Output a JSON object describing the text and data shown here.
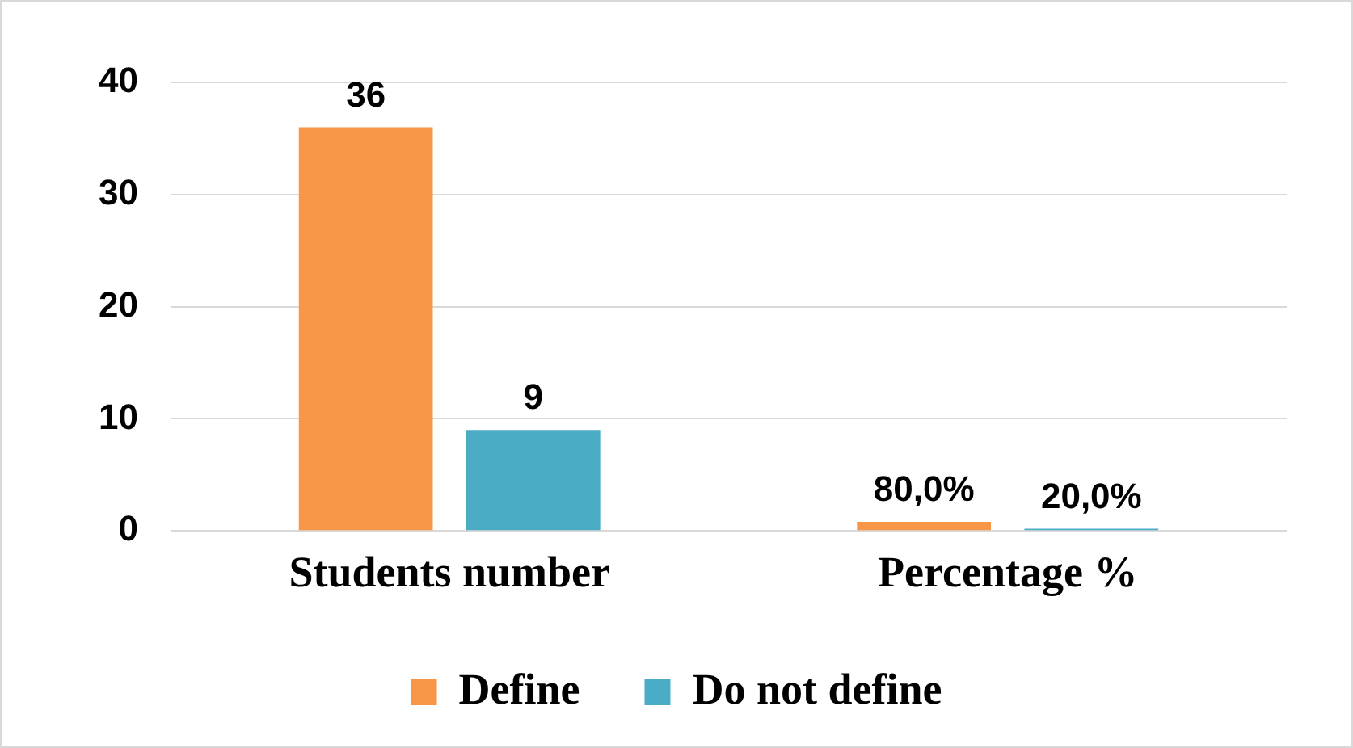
{
  "chart_data": {
    "type": "bar",
    "categories": [
      "Students number",
      "Percentage %"
    ],
    "series": [
      {
        "name": "Define",
        "color": "#f79646",
        "values": [
          36,
          0.8
        ],
        "value_labels": [
          "36",
          "80,0%"
        ]
      },
      {
        "name": "Do not define",
        "color": "#4bacc6",
        "values": [
          9,
          0.2
        ],
        "value_labels": [
          "9",
          "20,0%"
        ]
      }
    ],
    "ylim": [
      0,
      40
    ],
    "yticks": [
      0,
      10,
      20,
      30,
      40
    ],
    "grid": "y",
    "legend": "bottom"
  }
}
